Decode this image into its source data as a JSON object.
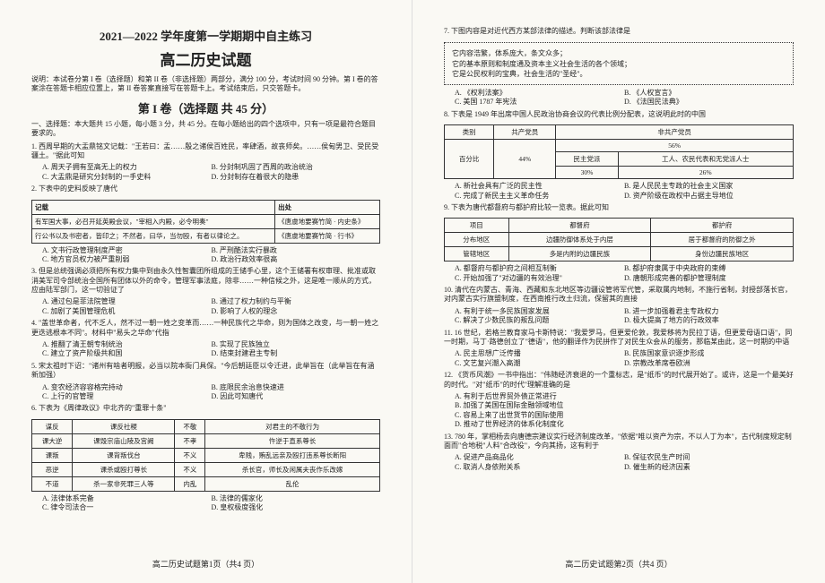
{
  "mainTitle": "2021—2022 学年度第一学期期中自主练习",
  "subTitle": "高二历史试题",
  "instructions": "说明：本试卷分第 I 卷（选择题）和第 II 卷（非选择题）两部分，满分 100 分，考试时间 90 分钟。第 I 卷的答案涂在答题卡相应位置上，第 II 卷答案直接写在答题卡上。考试结束后，只交答题卡。",
  "section1": "第 I 卷（选择题    共 45 分）",
  "section1Intro": "一、选择题：本大题共 15 小题，每小题 3 分，共 45 分。在每小题给出的四个选项中，只有一项是最符合题目要求的。",
  "q1": "1. 西周早期的大盂鼎铭文记载：\"王若曰：盂……殷之诸侯百姓民，率肆酒，故丧师矣。……侯甸男卫、受民受疆土。\"据此可知",
  "q1a": "A. 周天子拥有至高无上的权力",
  "q1b": "B. 分封制巩固了西周的政治统治",
  "q1c": "C. 大盂鼎是研究分封制的一手史料",
  "q1d": "D. 分封制存在着很大的隐患",
  "q2": "2. 下表中的史料反映了唐代",
  "q2_t_h1": "记载",
  "q2_t_h2": "出处",
  "q2_t_r1c1": "有军国大事，必召开延英殿会议，\"宰相入内殿，必令明奏\"",
  "q2_t_r1c2": "《唐虞地要赛竹简 · 内史条》",
  "q2_t_r2c1": "行公书以及书密者，皆印之；不然者，曰华，当勿殴，有者以律论之。",
  "q2_t_r2c2": "《唐虞地要赛竹简 · 行书》",
  "q2a": "A. 文书行政管理制度严密",
  "q2b": "B. 严刑酷法实行暴政",
  "q2c": "C. 地方官员权力被严重削弱",
  "q2d": "D. 政治行政效率很高",
  "q3": "3. 但是总统强调必须把所有权力集中到由永久性智囊团所组成的王储手心里，这个王储署有权审理、批准或取消美军司令部统治全国所有团体以外的命令，管理军事法庭，除非……一种信候之外，这是唯一顺从的方式，应由陆军部门，这一切验证了",
  "q3a": "A. 通过包是菲法院管理",
  "q3b": "B. 通过了权力制约与平衡",
  "q3c": "C. 加剧了美国管理危机",
  "q3d": "D. 影响了人权的理念",
  "q4": "4. \"盖世革命者，代不乏人，然不过一朝一姓之变革而……一种民族代之华命，则为国体之改变，与一朝一姓之更迭逃根本不同\"。材料中\"易头之华命\"代指",
  "q4a": "A. 推翻了清王朝专制统治",
  "q4b": "B. 实现了民族独立",
  "q4c": "C. 建立了资产阶级共和国",
  "q4d": "D. 结束封建君主专制",
  "q5": "5. 宋太祖时下诏：\"诸州有啥者明报，必当以院本衙门具保。\"今后朝廷臣以令迁进，此举旨在（此举旨在有涵新加强）",
  "q5a": "A. 变农经济容容格完持动",
  "q5b": "B. 底限民余治息快速进",
  "q5c": "C. 上行的官管理",
  "q5d": "D. 因此可知唐代",
  "q6": "6. 下表为《周律政议》中北齐的\"重罪十条\"",
  "q6_t_h1": "谋反",
  "q6_t_h2": "课反社稷",
  "q6_t_h3": "不敬",
  "q6_t_h4": "对君主的不敬行为",
  "q6_t_r1c1": "课大逆",
  "q6_t_r1c2": "课毁宗庙山陵及宫阙",
  "q6_t_r1c3": "不孝",
  "q6_t_r1c4": "忤逆于直系尊长",
  "q6_t_r2c1": "课叛",
  "q6_t_r2c2": "课背叛伐台",
  "q6_t_r2c3": "不义",
  "q6_t_r2c4": "卑贱，贿乱远亲及殴打违系尊长断阳",
  "q6_t_r3c1": "恶逆",
  "q6_t_r3c2": "课杀或殴打尊长",
  "q6_t_r3c3": "不义",
  "q6_t_r3c4": "杀长官，师长及闲属夫丧作乐改嫁",
  "q6_t_r4c1": "不道",
  "q6_t_r4c2": "杀一家非死罪三人等",
  "q6_t_r4c3": "内乱",
  "q6_t_r4c4": "乱伦",
  "q6a": "A. 法律体系完备",
  "q6b": "B. 法律的儒家化",
  "q6c": "C. 律令司法合一",
  "q6d": "D. 皇权极度强化",
  "footerLeft": "高二历史试题第1页（共4 页）",
  "q7": "7. 下图内容是对近代西方某部法律的描述。判断该部法律是",
  "q7_box1": "它内容浩繁，体系庞大，条文众多；",
  "q7_box2": "它的基本原则和制度通及资本主义社会生活的各个领域；",
  "q7_box3": "它是公民权利的宝典，社会生活的\"圣经\"。",
  "q7a": "A. 《权利法案》",
  "q7b": "B. 《人权宣言》",
  "q7c": "C. 美国 1787 年宪法",
  "q7d": "D. 《法国民法典》",
  "q8": "8. 下表是 1949 年出席中国人民政治协商会议的代表比例分配表，这说明此时的中国",
  "q8_t_h1": "类别",
  "q8_t_h2": "共产党员",
  "q8_t_h3": "非共产党员",
  "q8_t_r1c1": "百分比",
  "q8_t_r1c2": "44%",
  "q8_t_r1c3": "56%",
  "q8_t_r2c3": "民主党派",
  "q8_t_r2c4": "工人、农民代表和无党派人士",
  "q8_t_r3c3": "30%",
  "q8_t_r3c4": "26%",
  "q8a": "A. 新社会具有广泛的民主性",
  "q8b": "B. 是人民民主专政的社会主义国家",
  "q8c": "C. 完成了新民主主义革命任务",
  "q8d": "D. 资产阶级在政权中占据主导地位",
  "q9": "9. 下表为唐代都督府与都护府比较一览表。据此可知",
  "q9_t_h1": "项目",
  "q9_t_h2": "都督府",
  "q9_t_h3": "都护府",
  "q9_t_r1c1": "分布地区",
  "q9_t_r1c2": "边疆防御体系处于内层",
  "q9_t_r1c3": "居于都督府的防御之外",
  "q9_t_r2c1": "管辖地区",
  "q9_t_r2c2": "多是内附的边疆民族",
  "q9_t_r2c3": "身份边疆民族地区",
  "q9a": "A. 都督府与都护府之间相互制衡",
  "q9b": "B. 都护府隶属于中央政府的束缚",
  "q9c": "C. 开始加强了\"对边疆的有效治理\"",
  "q9d": "D. 唐朝形成完善的都护管理制度",
  "q10": "10. 清代在内蒙古、青海、西藏和东北地区等边疆设管将军代管，采取属内地制，不施行省制，封授部落长官，对内蒙古实行旗盟制度，在西南推行改土归流，保留其的直接",
  "q10a": "A. 有利于统一多民族国家发展",
  "q10b": "B. 进一步加强着君主专政权力",
  "q10c": "C. 解决了少数民族的叛乱问题",
  "q10d": "D. 极大提高了地方的行政效率",
  "q11": "11. 16 世纪，若格兰教育家马卡斯特说：\"我爱罗马，但更爱伦敦，我爱移将为民拉丁语，但更爱母语口语\"，同一时期，马丁·路德创立了\"德语\"，他的翻译作为民拼作了对民生众会从的服务，那临某由此，这一时期的中语",
  "q11a": "A. 民主思想广泛传播",
  "q11b": "B. 民族国家意识逐步形成",
  "q11c": "C. 文艺复兴潮入高潮",
  "q11d": "D. 宗教改革席卷欧洲",
  "q12": "12. 《货币风潮》一书中指出：\"伟随经济衰退的一个重标志，是\"纸币\"的时代展开始了。或许，这是一个最美好的时代。\"对\"纸币\"的时代\"理解准确的是",
  "q12a": "A. 有利于后世界贸外债正常进行",
  "q12b": "B. 加强了美国在国际金融领域地位",
  "q12c": "C. 容易上来了出世货节的国际使用",
  "q12d": "D. 推动了世界经济的体系化制度化",
  "q13": "13. 780 年，掌相杨去向唐德宗建议实行经济制度改革，\"依据\"唯以资产为宗，不以人丁为本\"，古代制度规定制面而\"合地税\"人料\"合改役\"，今向其扬，这有利于",
  "q13a": "A. 促进产品商品化",
  "q13b": "B. 保征农民生产时间",
  "q13c": "C. 取消人身依附关系",
  "q13d": "D. 催生新的经济因素",
  "footerRight": "高二历史试题第2页（共4 页）"
}
